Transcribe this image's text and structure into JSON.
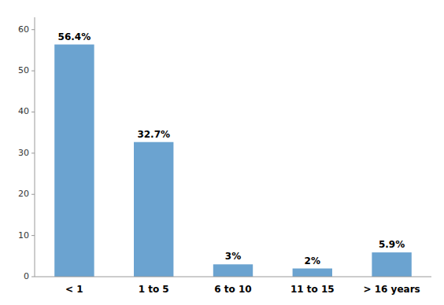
{
  "chart_data": {
    "type": "bar",
    "categories": [
      "< 1",
      "1 to 5",
      "6 to 10",
      "11 to 15",
      "> 16 years"
    ],
    "values": [
      56.4,
      32.7,
      3.0,
      2.0,
      5.9
    ],
    "value_labels": [
      "56.4%",
      "32.7%",
      "3%",
      "2%",
      "5.9%"
    ],
    "data_labels": true,
    "color": "#6BA3D0",
    "ylim": [
      0,
      63
    ],
    "yticks": [
      0,
      10,
      20,
      30,
      40,
      50,
      60
    ],
    "grid": false
  }
}
